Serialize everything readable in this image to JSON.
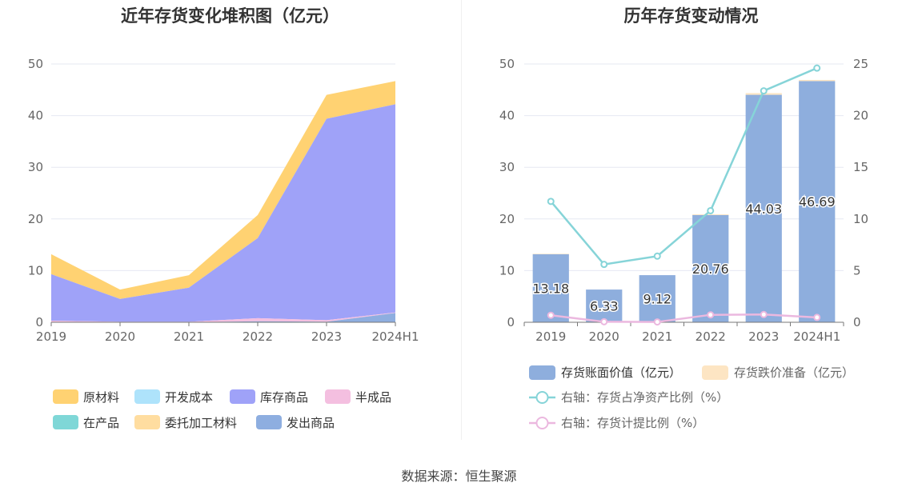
{
  "left_chart": {
    "title": "近年存货变化堆积图（亿元）"
  },
  "right_chart": {
    "title": "历年存货变动情况"
  },
  "source": "数据来源：恒生聚源",
  "chart_data": [
    {
      "type": "area",
      "title": "近年存货变化堆积图（亿元）",
      "stacked": true,
      "x": [
        "2019",
        "2020",
        "2021",
        "2022",
        "2023",
        "2024H1"
      ],
      "ylim": [
        0,
        50
      ],
      "yticks": [
        0,
        10,
        20,
        30,
        40,
        50
      ],
      "grid": true,
      "legend_position": "bottom",
      "legend": [
        "原材料",
        "开发成本",
        "库存商品",
        "半成品",
        "在产品",
        "委托加工材料",
        "发出商品"
      ],
      "series": [
        {
          "name": "发出商品",
          "color": "#8eaee0",
          "values": [
            0.0,
            0.0,
            0.0,
            0.2,
            0.1,
            1.8
          ]
        },
        {
          "name": "半成品",
          "color": "#f4bfe0",
          "values": [
            0.3,
            0.1,
            0.1,
            0.6,
            0.3,
            0.1
          ]
        },
        {
          "name": "库存商品",
          "color": "#9fa2f8",
          "values": [
            9.0,
            4.4,
            6.6,
            15.5,
            39.0,
            40.3
          ]
        },
        {
          "name": "原材料",
          "color": "#ffd272",
          "values": [
            3.88,
            1.83,
            2.42,
            4.46,
            4.63,
            4.49
          ]
        },
        {
          "name": "开发成本",
          "color": "#aee3fb",
          "values": [
            0,
            0,
            0,
            0,
            0,
            0
          ]
        },
        {
          "name": "在产品",
          "color": "#7fd7d7",
          "values": [
            0,
            0,
            0,
            0,
            0,
            0
          ]
        },
        {
          "name": "委托加工材料",
          "color": "#ffdda0",
          "values": [
            0,
            0,
            0,
            0,
            0,
            0
          ]
        }
      ]
    },
    {
      "type": "bar",
      "title": "历年存货变动情况",
      "categories": [
        "2019",
        "2020",
        "2021",
        "2022",
        "2023",
        "2024H1"
      ],
      "ylim": [
        0,
        50
      ],
      "yticks": [
        0,
        10,
        20,
        30,
        40,
        50
      ],
      "y2lim": [
        0,
        25
      ],
      "y2ticks": [
        0,
        5,
        10,
        15,
        20,
        25
      ],
      "grid": true,
      "legend_position": "bottom",
      "series": [
        {
          "name": "存货账面价值（亿元）",
          "type": "bar",
          "color": "#8eaedd",
          "values": [
            13.18,
            6.33,
            9.12,
            20.76,
            44.03,
            46.69
          ],
          "labels": [
            "13.18",
            "6.33",
            "9.12",
            "20.76",
            "44.03",
            "46.69"
          ]
        },
        {
          "name": "存货跌价准备（亿元）",
          "type": "bar",
          "color": "#fde5c3",
          "values": [
            0.09,
            0.0,
            0.0,
            0.15,
            0.33,
            0.22
          ]
        },
        {
          "name": "右轴：存货占净资产比例（%）",
          "type": "line",
          "axis": "right",
          "color": "#86d4d8",
          "values": [
            11.7,
            5.6,
            6.4,
            10.8,
            22.4,
            24.6
          ]
        },
        {
          "name": "右轴：存货计提比例（%）",
          "type": "line",
          "axis": "right",
          "color": "#ebb8df",
          "values": [
            0.68,
            0.05,
            0.03,
            0.72,
            0.75,
            0.47
          ]
        }
      ]
    }
  ]
}
